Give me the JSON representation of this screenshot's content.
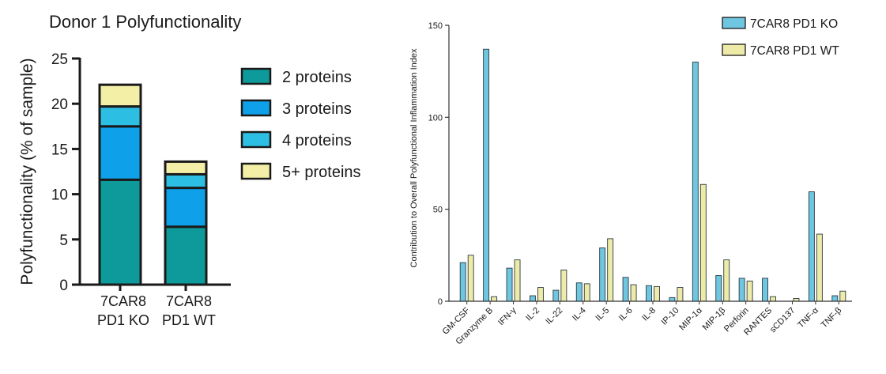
{
  "chart_data": [
    {
      "type": "bar",
      "stacked": true,
      "title": "Donor 1 Polyfunctionality",
      "xlabel": "",
      "ylabel": "Polyfunctionality (% of sample)",
      "categories": [
        [
          "7CAR8",
          "PD1 KO"
        ],
        [
          "7CAR8",
          "PD1 WT"
        ]
      ],
      "ylim": [
        0,
        25
      ],
      "yticks": [
        0,
        5,
        10,
        15,
        20,
        25
      ],
      "grid": false,
      "legend_position": "right",
      "series": [
        {
          "name": "2 proteins",
          "color": "#0e9a9a",
          "values": [
            11.6,
            6.4
          ]
        },
        {
          "name": "3 proteins",
          "color": "#0ea0e8",
          "values": [
            5.9,
            4.3
          ]
        },
        {
          "name": "4 proteins",
          "color": "#2dbfe3",
          "values": [
            2.2,
            1.5
          ]
        },
        {
          "name": "5+ proteins",
          "color": "#f3efa6",
          "values": [
            2.4,
            1.4
          ]
        }
      ]
    },
    {
      "type": "bar",
      "title": "",
      "xlabel": "",
      "ylabel": "Contribution to Overall Polyfunctional Inflammation Index",
      "categories": [
        "GM-CSF",
        "Granzyme B",
        "IFN-γ",
        "IL-2",
        "IL-22",
        "IL-4",
        "IL-5",
        "IL-6",
        "IL-8",
        "IP-10",
        "MIP-1α",
        "MIP-1β",
        "Perforin",
        "RANTES",
        "sCD137",
        "TNF-α",
        "TNF-β"
      ],
      "ylim": [
        0,
        150
      ],
      "yticks": [
        0,
        50,
        100,
        150
      ],
      "grid": false,
      "legend_position": "top-right",
      "series": [
        {
          "name": "7CAR8 PD1 KO",
          "color": "#6fc6e0",
          "values": [
            21,
            137,
            18,
            3,
            6,
            10,
            29,
            13,
            8.5,
            2,
            130,
            14,
            12.5,
            12.5,
            0,
            59.5,
            3
          ]
        },
        {
          "name": "7CAR8 PD1 WT",
          "color": "#eeeaa8",
          "values": [
            25,
            2.5,
            22.5,
            7.5,
            17,
            9.5,
            34,
            9,
            8,
            7.5,
            63.5,
            22.5,
            11,
            2.5,
            1.5,
            36.5,
            5.5
          ]
        }
      ]
    }
  ]
}
